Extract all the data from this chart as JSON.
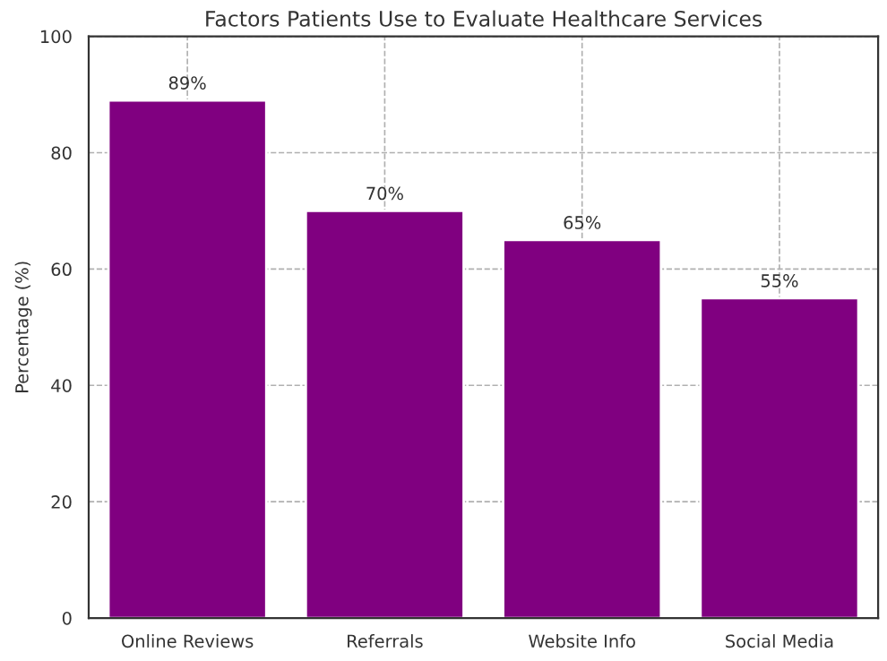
{
  "chart_data": {
    "type": "bar",
    "title": "Factors Patients Use to Evaluate Healthcare Services",
    "ylabel": "Percentage (%)",
    "categories": [
      "Online Reviews",
      "Referrals",
      "Website Info",
      "Social Media"
    ],
    "values": [
      89,
      70,
      65,
      55
    ],
    "color": "#800080",
    "value_labels": [
      "89%",
      "70%",
      "65%",
      "55%"
    ],
    "ylim": [
      0,
      100
    ],
    "yticks": [
      0,
      20,
      40,
      60,
      80,
      100
    ],
    "grid": true
  }
}
